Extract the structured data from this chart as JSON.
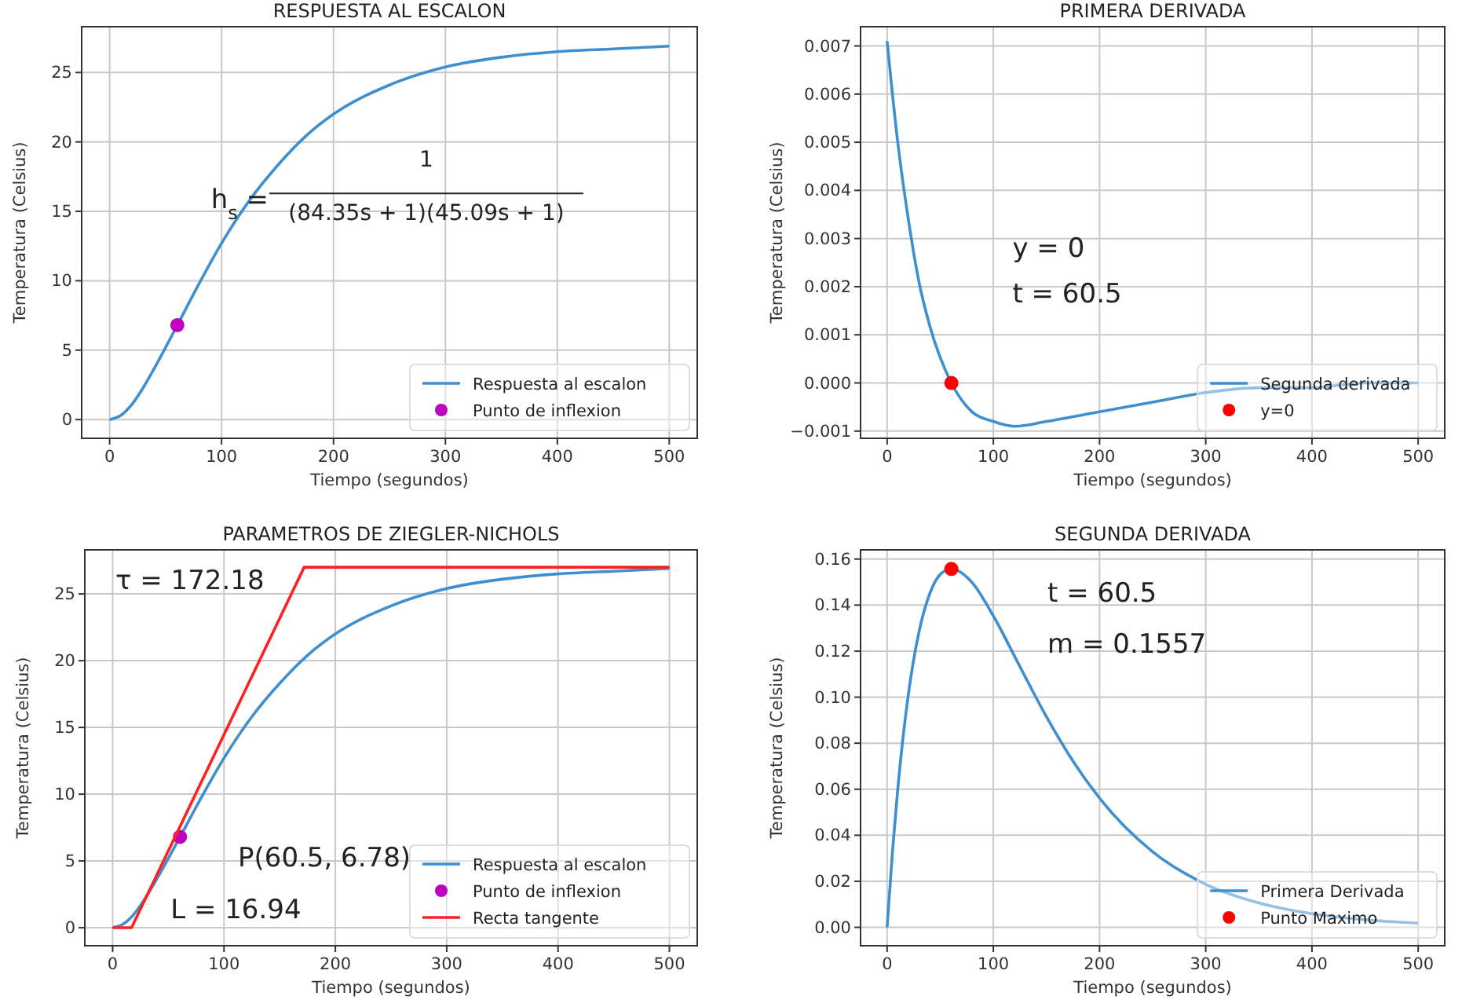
{
  "chart_data": [
    {
      "type": "line",
      "title": "RESPUESTA AL ESCALON",
      "xlabel": "Tiempo (segundos)",
      "ylabel": "Temperatura (Celsius)",
      "xlim": [
        -25,
        525
      ],
      "ylim": [
        -1.35,
        28.3
      ],
      "xticks": [
        0,
        100,
        200,
        300,
        400,
        500
      ],
      "yticks": [
        0,
        5,
        10,
        15,
        20,
        25
      ],
      "grid": true,
      "legend": "bottom right",
      "annotations": [
        "h$_{s}$ =",
        "1",
        "(84.35s + 1)(45.09s + 1)"
      ],
      "series": [
        {
          "name": "Respuesta al escalon",
          "type": "line",
          "color": "#3d8fd0",
          "x": [
            0,
            10,
            20,
            30,
            40,
            60.5,
            80,
            100,
            125,
            150,
            175,
            200,
            250,
            300,
            350,
            400,
            450,
            500
          ],
          "values": [
            0,
            0.3,
            1.1,
            2.3,
            3.7,
            6.8,
            9.8,
            12.7,
            15.8,
            18.3,
            20.4,
            22,
            24.1,
            25.4,
            26.1,
            26.5,
            26.7,
            26.9
          ]
        },
        {
          "name": "Punto de inflexion",
          "type": "scatter",
          "marker": "circle",
          "color": "#c000c0",
          "x": [
            60.5
          ],
          "values": [
            6.8
          ]
        }
      ]
    },
    {
      "type": "line",
      "title": "PRIMERA DERIVADA",
      "xlabel": "Tiempo (segundos)",
      "ylabel": "Temperatura (Celsius)",
      "xlim": [
        -25,
        525
      ],
      "ylim": [
        -0.00115,
        0.0074
      ],
      "xticks": [
        0,
        100,
        200,
        300,
        400,
        500
      ],
      "yticks": [
        {
          "value": -0.001,
          "label": "−0.001"
        },
        {
          "value": 0,
          "label": "0.000"
        },
        0.001,
        0.002,
        0.003,
        0.004,
        0.005,
        0.006,
        0.007
      ],
      "grid": true,
      "legend": "bottom right",
      "annotations": [
        "y = 0",
        "t = 60.5"
      ],
      "series": [
        {
          "name": "Segunda derivada",
          "type": "line",
          "color": "#3d8fd0",
          "x": [
            0,
            10,
            20,
            30,
            40,
            60.5,
            80,
            100,
            120,
            150,
            200,
            250,
            300,
            350,
            400,
            450,
            500
          ],
          "values": [
            0.0071,
            0.005,
            0.0034,
            0.0021,
            0.0012,
            0,
            -0.0006,
            -0.0008,
            -0.0009,
            -0.0008,
            -0.0006,
            -0.0004,
            -0.0002,
            -0.0001,
            -0.0001,
            0,
            0
          ]
        },
        {
          "name": "y=0",
          "type": "scatter",
          "marker": "circle",
          "color": "#ff0000",
          "x": [
            60.5
          ],
          "values": [
            0
          ]
        }
      ]
    },
    {
      "type": "line",
      "title": "PARAMETROS DE ZIEGLER-NICHOLS",
      "xlabel": "Tiempo (segundos)",
      "ylabel": "Temperatura (Celsius)",
      "xlim": [
        -25,
        525
      ],
      "ylim": [
        -1.35,
        28.3
      ],
      "xticks": [
        0,
        100,
        200,
        300,
        400,
        500
      ],
      "yticks": [
        0,
        5,
        10,
        15,
        20,
        25
      ],
      "grid": true,
      "legend": "bottom right",
      "annotations": [
        "τ = 172.18",
        "P(60.5, 6.78)",
        "L = 16.94"
      ],
      "series": [
        {
          "name": "Respuesta al escalon",
          "type": "line",
          "color": "#3d8fd0",
          "x": [
            0,
            10,
            20,
            30,
            40,
            60.5,
            80,
            100,
            125,
            150,
            175,
            200,
            250,
            300,
            350,
            400,
            450,
            500
          ],
          "values": [
            0,
            0.3,
            1.1,
            2.3,
            3.7,
            6.8,
            9.8,
            12.7,
            15.8,
            18.3,
            20.4,
            22,
            24.1,
            25.4,
            26.1,
            26.5,
            26.7,
            26.9
          ]
        },
        {
          "name": "Punto de inflexion",
          "type": "scatter",
          "marker": "circle",
          "color": "#c000c0",
          "x": [
            60.5
          ],
          "values": [
            6.8
          ]
        },
        {
          "name": "Recta tangente",
          "type": "line",
          "color": "#ff2020",
          "x": [
            0,
            17,
            172,
            500
          ],
          "values": [
            0,
            0,
            27,
            27
          ]
        }
      ]
    },
    {
      "type": "line",
      "title": "SEGUNDA DERIVADA",
      "xlabel": "Tiempo (segundos)",
      "ylabel": "Temperatura (Celsius)",
      "xlim": [
        -25,
        525
      ],
      "ylim": [
        -0.008,
        0.164
      ],
      "xticks": [
        0,
        100,
        200,
        300,
        400,
        500
      ],
      "yticks": [
        {
          "value": 0,
          "label": "0.00"
        },
        {
          "value": 0.02,
          "label": "0.02"
        },
        {
          "value": 0.04,
          "label": "0.04"
        },
        {
          "value": 0.06,
          "label": "0.06"
        },
        {
          "value": 0.08,
          "label": "0.08"
        },
        {
          "value": 0.1,
          "label": "0.10"
        },
        {
          "value": 0.12,
          "label": "0.12"
        },
        {
          "value": 0.14,
          "label": "0.14"
        },
        {
          "value": 0.16,
          "label": "0.16"
        }
      ],
      "grid": true,
      "legend": "bottom right",
      "annotations": [
        "t = 60.5",
        "m = 0.1557"
      ],
      "series": [
        {
          "name": "Primera Derivada",
          "type": "line",
          "color": "#3d8fd0",
          "x": [
            0,
            5,
            10,
            20,
            30,
            40,
            50,
            60.5,
            80,
            100,
            125,
            150,
            175,
            200,
            250,
            300,
            350,
            400,
            450,
            500
          ],
          "values": [
            0,
            0.0326,
            0.0599,
            0.1012,
            0.1283,
            0.1448,
            0.1533,
            0.1557,
            0.1498,
            0.1353,
            0.1133,
            0.0915,
            0.0722,
            0.0561,
            0.0328,
            0.0187,
            0.0106,
            0.0059,
            0.0033,
            0.0018
          ]
        },
        {
          "name": "Punto Maximo",
          "type": "scatter",
          "marker": "circle",
          "color": "#ff0000",
          "x": [
            60.5
          ],
          "values": [
            0.1557
          ]
        }
      ]
    }
  ]
}
